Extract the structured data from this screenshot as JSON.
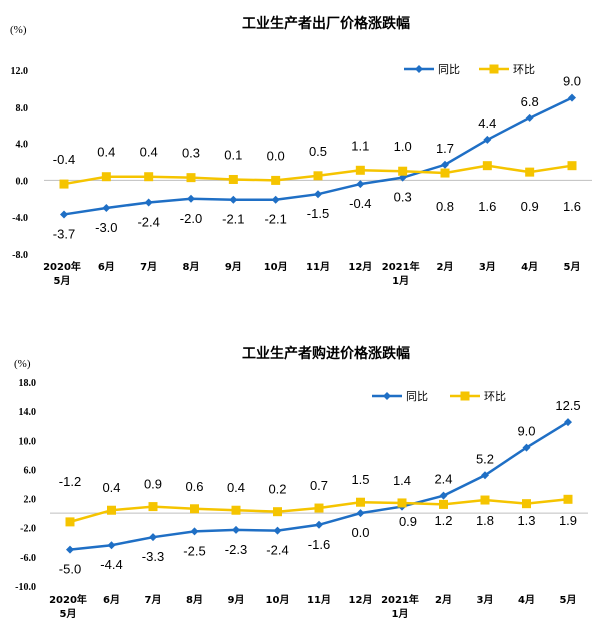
{
  "chart_data": [
    {
      "type": "line",
      "title": "工业生产者出厂价格涨跌幅",
      "unit": "(%)",
      "categories": [
        [
          "2020年",
          "5月"
        ],
        [
          "6月"
        ],
        [
          "7月"
        ],
        [
          "8月"
        ],
        [
          "9月"
        ],
        [
          "10月"
        ],
        [
          "11月"
        ],
        [
          "12月"
        ],
        [
          "2021年",
          "1月"
        ],
        [
          "2月"
        ],
        [
          "3月"
        ],
        [
          "4月"
        ],
        [
          "5月"
        ]
      ],
      "yticks": [
        "12.0",
        "8.0",
        "4.0",
        "0.0",
        "-4.0",
        "-8.0"
      ],
      "ylim": [
        -8,
        12
      ],
      "legend_position": "top-right",
      "series": [
        {
          "name": "同比",
          "color": "#1f6fc5",
          "marker": "diamond",
          "values": [
            -3.7,
            -3.0,
            -2.4,
            -2.0,
            -2.1,
            -2.1,
            -1.5,
            -0.4,
            0.3,
            1.7,
            4.4,
            6.8,
            9.0
          ],
          "labels": [
            "-3.7",
            "-3.0",
            "-2.4",
            "-2.0",
            "-2.1",
            "-2.1",
            "-1.5",
            "-0.4",
            "0.3",
            "1.7",
            "4.4",
            "6.8",
            "9.0"
          ]
        },
        {
          "name": "环比",
          "color": "#f5c400",
          "marker": "square",
          "values": [
            -0.4,
            0.4,
            0.4,
            0.3,
            0.1,
            0.0,
            0.5,
            1.1,
            1.0,
            0.8,
            1.6,
            0.9,
            1.6
          ],
          "labels": [
            "-0.4",
            "0.4",
            "0.4",
            "0.3",
            "0.1",
            "0.0",
            "0.5",
            "1.1",
            "1.0",
            "0.8",
            "1.6",
            "0.9",
            "1.6"
          ]
        }
      ]
    },
    {
      "type": "line",
      "title": "工业生产者购进价格涨跌幅",
      "unit": "(%)",
      "categories": [
        [
          "2020年",
          "5月"
        ],
        [
          "6月"
        ],
        [
          "7月"
        ],
        [
          "8月"
        ],
        [
          "9月"
        ],
        [
          "10月"
        ],
        [
          "11月"
        ],
        [
          "12月"
        ],
        [
          "2021年",
          "1月"
        ],
        [
          "2月"
        ],
        [
          "3月"
        ],
        [
          "4月"
        ],
        [
          "5月"
        ]
      ],
      "yticks": [
        "18.0",
        "14.0",
        "10.0",
        "6.0",
        "2.0",
        "-2.0",
        "-6.0",
        "-10.0"
      ],
      "ylim": [
        -10,
        18
      ],
      "legend_position": "top-right",
      "series": [
        {
          "name": "同比",
          "color": "#1f6fc5",
          "marker": "diamond",
          "values": [
            -5.0,
            -4.4,
            -3.3,
            -2.5,
            -2.3,
            -2.4,
            -1.6,
            0.0,
            0.9,
            2.4,
            5.2,
            9.0,
            12.5
          ],
          "labels": [
            "-5.0",
            "-4.4",
            "-3.3",
            "-2.5",
            "-2.3",
            "-2.4",
            "-1.6",
            "0.0",
            "0.9",
            "2.4",
            "5.2",
            "9.0",
            "12.5"
          ]
        },
        {
          "name": "环比",
          "color": "#f5c400",
          "marker": "square",
          "values": [
            -1.2,
            0.4,
            0.9,
            0.6,
            0.4,
            0.2,
            0.7,
            1.5,
            1.4,
            1.2,
            1.8,
            1.3,
            1.9
          ],
          "labels": [
            "-1.2",
            "0.4",
            "0.9",
            "0.6",
            "0.4",
            "0.2",
            "0.7",
            "1.5",
            "1.4",
            "1.2",
            "1.8",
            "1.3",
            "1.9"
          ]
        }
      ]
    }
  ]
}
